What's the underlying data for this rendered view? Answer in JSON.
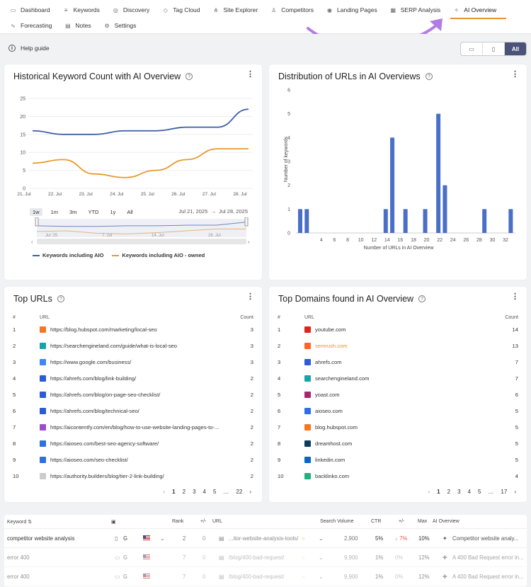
{
  "nav": {
    "row1": [
      {
        "label": "Dashboard",
        "icon": "dashboard-icon"
      },
      {
        "label": "Keywords",
        "icon": "keywords-icon"
      },
      {
        "label": "Discovery",
        "icon": "discovery-icon"
      },
      {
        "label": "Tag Cloud",
        "icon": "tag-icon"
      },
      {
        "label": "Site Explorer",
        "icon": "sitemap-icon"
      },
      {
        "label": "Competitors",
        "icon": "user-icon"
      },
      {
        "label": "Landing Pages",
        "icon": "target-icon"
      },
      {
        "label": "SERP Analysis",
        "icon": "calendar-icon"
      },
      {
        "label": "AI Overview",
        "icon": "sparkle-icon",
        "active": true
      }
    ],
    "row2": [
      {
        "label": "Forecasting",
        "icon": "forecast-icon"
      },
      {
        "label": "Notes",
        "icon": "notes-icon"
      },
      {
        "label": "Settings",
        "icon": "gear-icon"
      }
    ]
  },
  "help": {
    "label": "Help guide"
  },
  "device_switch": {
    "active_label": "All"
  },
  "colors": {
    "accent": "#e8922e",
    "series_blue": "#3d5ea8",
    "series_orange": "#e8992f",
    "bar": "#4a6fc7",
    "arrow": "#b27be6"
  },
  "historical": {
    "title": "Historical Keyword Count with AI Overview",
    "ranges": [
      "1w",
      "1m",
      "3m",
      "YTD",
      "1y",
      "All"
    ],
    "selected_range": "1w",
    "range_start": "Jul 21, 2025",
    "range_end": "Jul 28, 2025",
    "navigator_labels": [
      "Jul '25",
      "7. Jul",
      "14. Jul",
      "28. Jul"
    ]
  },
  "distribution": {
    "title": "Distribution of URLs in AI Overviews"
  },
  "chart_data": [
    {
      "type": "line",
      "x": [
        "21. Jul",
        "22. Jul",
        "23. Jul",
        "24. Jul",
        "25. Jul",
        "26. Jul",
        "27. Jul",
        "28. Jul"
      ],
      "series": [
        {
          "name": "Keywords including AIO",
          "values": [
            16,
            15,
            15,
            16,
            16,
            17,
            17,
            22
          ]
        },
        {
          "name": "Keywords including AIO - owned",
          "values": [
            7,
            8,
            4,
            3,
            5,
            8,
            11,
            11
          ]
        }
      ],
      "yticks": [
        0,
        5,
        10,
        15,
        20,
        25
      ],
      "ylim": [
        0,
        25
      ]
    },
    {
      "type": "bar",
      "x": [
        1,
        2,
        14,
        15,
        17,
        20,
        22,
        23,
        29,
        33
      ],
      "values": [
        1,
        1,
        1,
        4,
        1,
        1,
        5,
        2,
        1,
        1
      ],
      "xticks": [
        4,
        6,
        8,
        10,
        12,
        14,
        16,
        18,
        20,
        22,
        24,
        26,
        28,
        30,
        32
      ],
      "yticks": [
        0,
        1,
        2,
        3,
        4,
        5,
        6
      ],
      "ylim": [
        0,
        6
      ],
      "xlabel": "Number of URLs in AI Overview",
      "ylabel": "Number of keywords"
    }
  ],
  "top_urls": {
    "title": "Top URLs",
    "headers": [
      "#",
      "URL",
      "Count"
    ],
    "rows": [
      {
        "n": "1",
        "url": "https://blog.hubspot.com/marketing/local-seo",
        "count": "3",
        "fav": "#f57722"
      },
      {
        "n": "2",
        "url": "https://searchengineland.com/guide/what-is-local-seo",
        "count": "3",
        "fav": "#18a3a8"
      },
      {
        "n": "3",
        "url": "https://www.google.com/business/",
        "count": "3",
        "fav": "#4285f4"
      },
      {
        "n": "4",
        "url": "https://ahrefs.com/blog/link-building/",
        "count": "2",
        "fav": "#2b5bd7"
      },
      {
        "n": "5",
        "url": "https://ahrefs.com/blog/on-page-seo-checklist/",
        "count": "2",
        "fav": "#2b5bd7"
      },
      {
        "n": "6",
        "url": "https://ahrefs.com/blog/technical-seo/",
        "count": "2",
        "fav": "#2b5bd7"
      },
      {
        "n": "7",
        "url": "https://aicontentfy.com/en/blog/how-to-use-website-landing-pages-to-...",
        "count": "2",
        "fav": "#9b4dd1"
      },
      {
        "n": "8",
        "url": "https://aioseo.com/best-seo-agency-software/",
        "count": "2",
        "fav": "#2f6fe0"
      },
      {
        "n": "9",
        "url": "https://aioseo.com/seo-checklist/",
        "count": "2",
        "fav": "#2f6fe0"
      },
      {
        "n": "10",
        "url": "https://authority.builders/blog/tier-2-link-building/",
        "count": "2",
        "fav": "#cccccc"
      }
    ],
    "pages": [
      "1",
      "2",
      "3",
      "4",
      "5",
      "…",
      "22"
    ],
    "current_page": "1"
  },
  "top_domains": {
    "title": "Top Domains found in AI Overview",
    "headers": [
      "#",
      "URL",
      "Count"
    ],
    "rows": [
      {
        "n": "1",
        "domain": "youtube.com",
        "count": "14",
        "fav": "#e62117"
      },
      {
        "n": "2",
        "domain": "semrush.com",
        "count": "13",
        "fav": "#ff642d",
        "highlight": "#e8922e"
      },
      {
        "n": "3",
        "domain": "ahrefs.com",
        "count": "7",
        "fav": "#2b5bd7"
      },
      {
        "n": "4",
        "domain": "searchengineland.com",
        "count": "7",
        "fav": "#18a3a8"
      },
      {
        "n": "5",
        "domain": "yoast.com",
        "count": "6",
        "fav": "#a4286a"
      },
      {
        "n": "6",
        "domain": "aioseo.com",
        "count": "5",
        "fav": "#2f6fe0"
      },
      {
        "n": "7",
        "domain": "blog.hubspot.com",
        "count": "5",
        "fav": "#f57722"
      },
      {
        "n": "8",
        "domain": "dreamhost.com",
        "count": "5",
        "fav": "#0b3c5d"
      },
      {
        "n": "9",
        "domain": "linkedin.com",
        "count": "5",
        "fav": "#0a66c2"
      },
      {
        "n": "10",
        "domain": "backlinko.com",
        "count": "4",
        "fav": "#22b07d"
      }
    ],
    "pages": [
      "1",
      "2",
      "3",
      "4",
      "5",
      "…",
      "17"
    ],
    "current_page": "1"
  },
  "keywords_table": {
    "headers": {
      "keyword": "Keyword",
      "rank": "Rank",
      "change": "+/-",
      "url": "URL",
      "volume": "Search Volume",
      "ctr": "CTR",
      "ctr_change": "+/-",
      "max": "Max",
      "aio": "AI Overview"
    },
    "rows": [
      {
        "keyword": "competitor website analysis",
        "rank": "2",
        "change": "0",
        "url": "...itor-website-analysis-tools/",
        "volume": "2,900",
        "ctr": "5%",
        "ctr_change": "↓ 7%",
        "max": "10%",
        "aio": "Competitor website analy..."
      },
      {
        "keyword": "error 400",
        "rank": "7",
        "change": "0",
        "url": "/blog/400-bad-request/",
        "volume": "9,900",
        "ctr": "1%",
        "ctr_change": "0%",
        "max": "12%",
        "aio": "A 400 Bad Request error in..."
      },
      {
        "keyword": "error 400",
        "rank": "7",
        "change": "0",
        "url": "/blog/400-bad-request/",
        "volume": "9,900",
        "ctr": "1%",
        "ctr_change": "0%",
        "max": "12%",
        "aio": "A 400 Bad Request error in..."
      }
    ]
  }
}
